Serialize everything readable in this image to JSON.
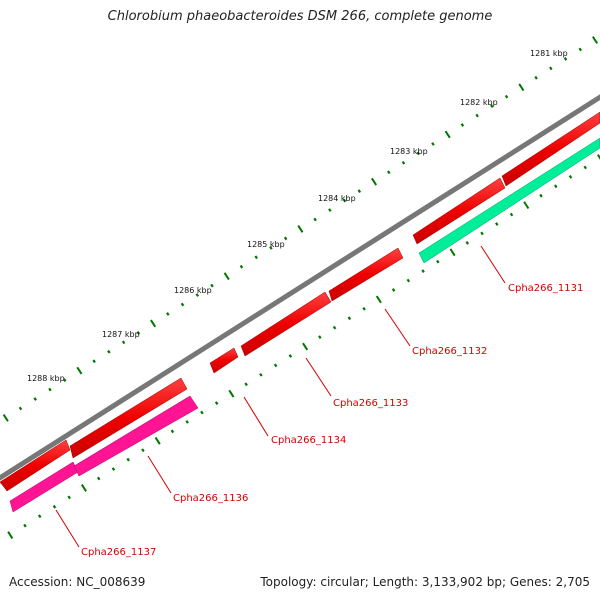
{
  "title": "Chlorobium phaeobacteroides DSM 266, complete genome",
  "ticks": [
    {
      "label": "1281 kbp"
    },
    {
      "label": "1282 kbp"
    },
    {
      "label": "1283 kbp"
    },
    {
      "label": "1284 kbp"
    },
    {
      "label": "1285 kbp"
    },
    {
      "label": "1286 kbp"
    },
    {
      "label": "1287 kbp"
    },
    {
      "label": "1288 kbp"
    }
  ],
  "genes": [
    {
      "name": "Cpha266_1131",
      "color": "#ff0000"
    },
    {
      "name": "Cpha266_1132",
      "color": "#ff0000"
    },
    {
      "name": "Cpha266_1133",
      "color": "#ff0000"
    },
    {
      "name": "Cpha266_1134",
      "color": "#ff0000"
    },
    {
      "name": "Cpha266_1136",
      "color": "#ff1493"
    },
    {
      "name": "Cpha266_1137",
      "color": "#ff1493"
    }
  ],
  "colors": {
    "backbone": "#777777",
    "ticks": "#007700",
    "label": "#d40000",
    "forward_gene": "#ff0000",
    "reverse_gene_pink": "#ff1493",
    "reverse_gene_green": "#00ee99"
  },
  "footer": {
    "accession": "Accession: NC_008639",
    "info": "Topology: circular; Length: 3,133,902 bp; Genes: 2,705"
  }
}
